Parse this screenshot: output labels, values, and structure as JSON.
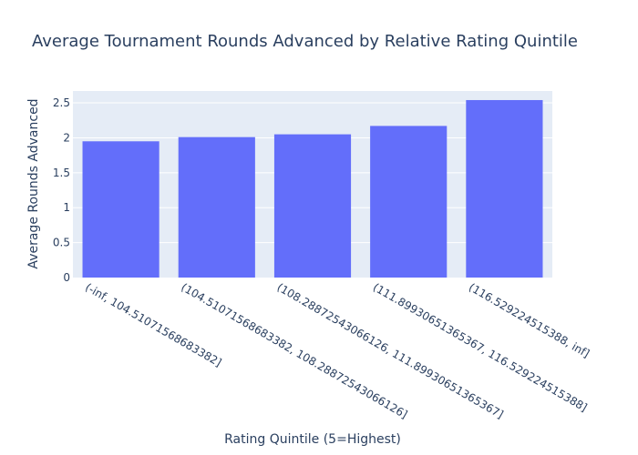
{
  "chart_data": {
    "type": "bar",
    "title": "Average Tournament Rounds Advanced by Relative Rating Quintile",
    "xlabel": "Rating Quintile (5=Highest)",
    "ylabel": "Average Rounds Advanced",
    "categories": [
      "(-inf, 104.51071568683382]",
      "(104.51071568683382, 108.28872543066126]",
      "(108.28872543066126, 111.89930651365367]",
      "(111.89930651365367, 116.529224515388]",
      "(116.529224515388, inf]"
    ],
    "values": [
      1.95,
      2.01,
      2.05,
      2.17,
      2.54
    ],
    "ylim": [
      0,
      2.67
    ],
    "yticks": [
      0,
      0.5,
      1,
      1.5,
      2,
      2.5
    ],
    "ytick_labels": [
      "0",
      "0.5",
      "1",
      "1.5",
      "2",
      "2.5"
    ],
    "grid": true,
    "colors": {
      "bar": "#636efa",
      "plot_bg": "#e5ecf6",
      "grid": "#ffffff",
      "text": "#2a3f5f"
    }
  }
}
